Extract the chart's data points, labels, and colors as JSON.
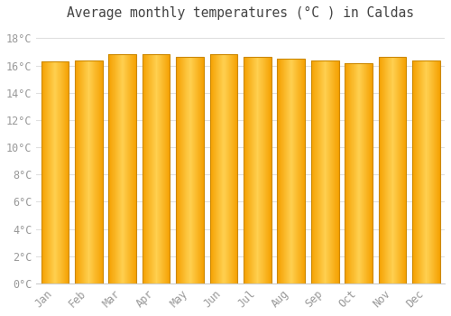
{
  "title": "Average monthly temperatures (°C ) in Caldas",
  "months": [
    "Jan",
    "Feb",
    "Mar",
    "Apr",
    "May",
    "Jun",
    "Jul",
    "Aug",
    "Sep",
    "Oct",
    "Nov",
    "Dec"
  ],
  "values": [
    16.3,
    16.4,
    16.8,
    16.8,
    16.6,
    16.8,
    16.6,
    16.5,
    16.4,
    16.2,
    16.6,
    16.4
  ],
  "bar_color_center": "#FFD050",
  "bar_color_edge": "#F5A000",
  "bar_border_color": "#CC8800",
  "yticks": [
    0,
    2,
    4,
    6,
    8,
    10,
    12,
    14,
    16,
    18
  ],
  "ylim": [
    0,
    19
  ],
  "background_color": "#ffffff",
  "grid_color": "#e0e0e0",
  "tick_label_color": "#999999",
  "title_color": "#444444",
  "title_fontsize": 10.5,
  "tick_fontsize": 8.5,
  "bar_width": 0.82
}
